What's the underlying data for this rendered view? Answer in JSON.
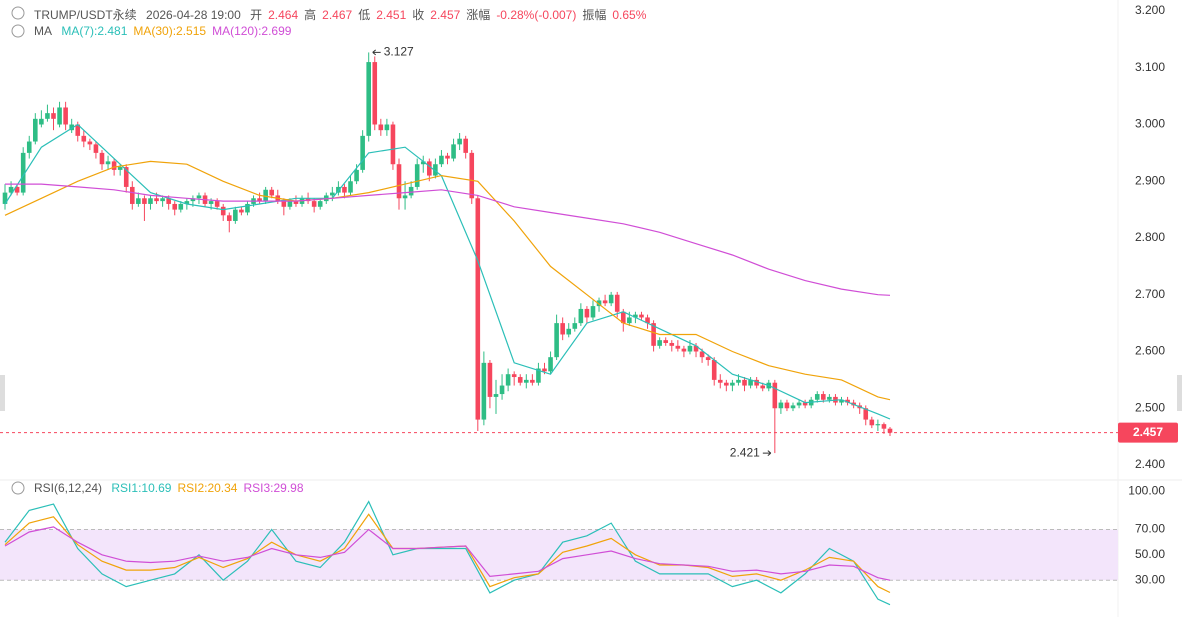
{
  "chart_data": [
    {
      "type": "candlestick",
      "title": "TRUMP/USDT永续",
      "time": "2026-04-28 19:00",
      "header": [
        {
          "label": "开",
          "value": 2.464
        },
        {
          "label": "高",
          "value": 2.467
        },
        {
          "label": "低",
          "value": 2.451
        },
        {
          "label": "收",
          "value": 2.457
        },
        {
          "label": "涨幅",
          "value": "-0.28%(-0.007)"
        },
        {
          "label": "振幅",
          "value": "0.65%"
        }
      ],
      "indicator": "MA",
      "up_color": "#2ebd85",
      "down_color": "#f6465d",
      "ylim": [
        2.4,
        3.2
      ],
      "yticks": [
        {
          "value": 3.2,
          "label": "3.200"
        },
        {
          "value": 3.1,
          "label": "3.100"
        },
        {
          "value": 3.0,
          "label": "3.000"
        },
        {
          "value": 2.9,
          "label": "2.900"
        },
        {
          "value": 2.8,
          "label": "2.800"
        },
        {
          "value": 2.7,
          "label": "2.700"
        },
        {
          "value": 2.6,
          "label": "2.600"
        },
        {
          "value": 2.5,
          "label": "2.500"
        },
        {
          "value": 2.4,
          "label": "2.400"
        }
      ],
      "last_price": 2.457,
      "high_label": 3.127,
      "low_label": 2.421,
      "candles": [
        [
          2.86,
          2.895,
          2.85,
          2.88
        ],
        [
          2.88,
          2.9,
          2.875,
          2.89
        ],
        [
          2.89,
          2.895,
          2.875,
          2.88
        ],
        [
          2.88,
          2.96,
          2.875,
          2.95
        ],
        [
          2.95,
          2.98,
          2.94,
          2.97
        ],
        [
          2.97,
          3.02,
          2.965,
          3.01
        ],
        [
          3.0,
          3.025,
          2.995,
          3.01
        ],
        [
          3.01,
          3.035,
          3.005,
          3.02
        ],
        [
          3.02,
          3.03,
          2.99,
          3.01
        ],
        [
          3.0,
          3.04,
          2.995,
          3.03
        ],
        [
          3.03,
          3.04,
          2.99,
          3.0
        ],
        [
          2.99,
          3.01,
          2.985,
          3.0
        ],
        [
          3.0,
          3.005,
          2.97,
          2.98
        ],
        [
          2.98,
          2.99,
          2.96,
          2.97
        ],
        [
          2.97,
          2.975,
          2.955,
          2.965
        ],
        [
          2.965,
          2.97,
          2.94,
          2.95
        ],
        [
          2.95,
          2.955,
          2.92,
          2.93
        ],
        [
          2.93,
          2.945,
          2.92,
          2.935
        ],
        [
          2.935,
          2.94,
          2.91,
          2.92
        ],
        [
          2.92,
          2.93,
          2.91,
          2.925
        ],
        [
          2.925,
          2.93,
          2.88,
          2.89
        ],
        [
          2.89,
          2.9,
          2.85,
          2.86
        ],
        [
          2.86,
          2.88,
          2.855,
          2.87
        ],
        [
          2.87,
          2.875,
          2.83,
          2.86
        ],
        [
          2.86,
          2.875,
          2.85,
          2.87
        ],
        [
          2.87,
          2.88,
          2.86,
          2.865
        ],
        [
          2.865,
          2.875,
          2.855,
          2.87
        ],
        [
          2.87,
          2.875,
          2.85,
          2.86
        ],
        [
          2.86,
          2.865,
          2.84,
          2.85
        ],
        [
          2.85,
          2.865,
          2.845,
          2.86
        ],
        [
          2.86,
          2.87,
          2.85,
          2.865
        ],
        [
          2.865,
          2.875,
          2.855,
          2.87
        ],
        [
          2.87,
          2.88,
          2.86,
          2.875
        ],
        [
          2.875,
          2.88,
          2.855,
          2.86
        ],
        [
          2.86,
          2.87,
          2.85,
          2.865
        ],
        [
          2.865,
          2.87,
          2.85,
          2.855
        ],
        [
          2.855,
          2.86,
          2.83,
          2.84
        ],
        [
          2.84,
          2.845,
          2.81,
          2.83
        ],
        [
          2.83,
          2.855,
          2.825,
          2.85
        ],
        [
          2.85,
          2.855,
          2.84,
          2.845
        ],
        [
          2.845,
          2.865,
          2.84,
          2.86
        ],
        [
          2.86,
          2.875,
          2.855,
          2.87
        ],
        [
          2.87,
          2.88,
          2.86,
          2.865
        ],
        [
          2.865,
          2.89,
          2.86,
          2.885
        ],
        [
          2.885,
          2.89,
          2.87,
          2.875
        ],
        [
          2.875,
          2.885,
          2.86,
          2.865
        ],
        [
          2.865,
          2.87,
          2.84,
          2.855
        ],
        [
          2.855,
          2.87,
          2.85,
          2.865
        ],
        [
          2.865,
          2.875,
          2.855,
          2.86
        ],
        [
          2.86,
          2.875,
          2.855,
          2.87
        ],
        [
          2.87,
          2.88,
          2.86,
          2.865
        ],
        [
          2.865,
          2.87,
          2.845,
          2.855
        ],
        [
          2.855,
          2.87,
          2.85,
          2.865
        ],
        [
          2.865,
          2.88,
          2.86,
          2.875
        ],
        [
          2.875,
          2.89,
          2.865,
          2.88
        ],
        [
          2.88,
          2.9,
          2.875,
          2.89
        ],
        [
          2.89,
          2.895,
          2.87,
          2.88
        ],
        [
          2.88,
          2.91,
          2.875,
          2.9
        ],
        [
          2.9,
          2.93,
          2.895,
          2.92
        ],
        [
          2.92,
          2.99,
          2.915,
          2.98
        ],
        [
          2.98,
          3.127,
          2.97,
          3.11
        ],
        [
          3.11,
          3.12,
          2.99,
          3.0
        ],
        [
          3.0,
          3.01,
          2.98,
          2.99
        ],
        [
          2.99,
          3.01,
          2.98,
          3.0
        ],
        [
          3.0,
          3.005,
          2.92,
          2.93
        ],
        [
          2.93,
          2.94,
          2.85,
          2.87
        ],
        [
          2.87,
          2.9,
          2.85,
          2.875
        ],
        [
          2.875,
          2.9,
          2.87,
          2.89
        ],
        [
          2.89,
          2.94,
          2.885,
          2.93
        ],
        [
          2.93,
          2.945,
          2.915,
          2.935
        ],
        [
          2.935,
          2.94,
          2.9,
          2.91
        ],
        [
          2.91,
          2.94,
          2.905,
          2.93
        ],
        [
          2.93,
          2.955,
          2.925,
          2.945
        ],
        [
          2.945,
          2.95,
          2.93,
          2.94
        ],
        [
          2.94,
          2.975,
          2.935,
          2.965
        ],
        [
          2.965,
          2.985,
          2.955,
          2.975
        ],
        [
          2.975,
          2.98,
          2.94,
          2.95
        ],
        [
          2.95,
          2.955,
          2.86,
          2.87
        ],
        [
          2.87,
          2.875,
          2.46,
          2.48
        ],
        [
          2.48,
          2.6,
          2.47,
          2.58
        ],
        [
          2.58,
          2.585,
          2.5,
          2.52
        ],
        [
          2.52,
          2.55,
          2.49,
          2.525
        ],
        [
          2.525,
          2.56,
          2.515,
          2.54
        ],
        [
          2.54,
          2.57,
          2.53,
          2.56
        ],
        [
          2.56,
          2.565,
          2.54,
          2.555
        ],
        [
          2.555,
          2.56,
          2.54,
          2.545
        ],
        [
          2.545,
          2.56,
          2.535,
          2.55
        ],
        [
          2.55,
          2.56,
          2.54,
          2.545
        ],
        [
          2.545,
          2.58,
          2.54,
          2.57
        ],
        [
          2.57,
          2.58,
          2.56,
          2.565
        ],
        [
          2.565,
          2.6,
          2.56,
          2.59
        ],
        [
          2.59,
          2.665,
          2.585,
          2.65
        ],
        [
          2.65,
          2.66,
          2.62,
          2.63
        ],
        [
          2.63,
          2.65,
          2.625,
          2.64
        ],
        [
          2.64,
          2.66,
          2.635,
          2.65
        ],
        [
          2.65,
          2.685,
          2.645,
          2.675
        ],
        [
          2.675,
          2.68,
          2.65,
          2.66
        ],
        [
          2.66,
          2.69,
          2.655,
          2.68
        ],
        [
          2.68,
          2.695,
          2.67,
          2.69
        ],
        [
          2.69,
          2.7,
          2.68,
          2.685
        ],
        [
          2.685,
          2.705,
          2.68,
          2.7
        ],
        [
          2.7,
          2.705,
          2.66,
          2.67
        ],
        [
          2.67,
          2.675,
          2.635,
          2.65
        ],
        [
          2.65,
          2.67,
          2.645,
          2.66
        ],
        [
          2.66,
          2.67,
          2.65,
          2.665
        ],
        [
          2.665,
          2.67,
          2.655,
          2.66
        ],
        [
          2.66,
          2.665,
          2.64,
          2.65
        ],
        [
          2.65,
          2.655,
          2.6,
          2.61
        ],
        [
          2.61,
          2.625,
          2.605,
          2.62
        ],
        [
          2.62,
          2.625,
          2.61,
          2.615
        ],
        [
          2.615,
          2.62,
          2.6,
          2.61
        ],
        [
          2.61,
          2.62,
          2.6,
          2.605
        ],
        [
          2.605,
          2.61,
          2.59,
          2.6
        ],
        [
          2.6,
          2.62,
          2.595,
          2.61
        ],
        [
          2.61,
          2.615,
          2.59,
          2.6
        ],
        [
          2.6,
          2.605,
          2.58,
          2.59
        ],
        [
          2.59,
          2.595,
          2.575,
          2.585
        ],
        [
          2.585,
          2.59,
          2.54,
          2.55
        ],
        [
          2.55,
          2.56,
          2.535,
          2.545
        ],
        [
          2.545,
          2.55,
          2.53,
          2.54
        ],
        [
          2.54,
          2.55,
          2.53,
          2.545
        ],
        [
          2.545,
          2.56,
          2.54,
          2.55
        ],
        [
          2.55,
          2.555,
          2.53,
          2.54
        ],
        [
          2.54,
          2.555,
          2.535,
          2.55
        ],
        [
          2.55,
          2.555,
          2.535,
          2.54
        ],
        [
          2.54,
          2.545,
          2.53,
          2.535
        ],
        [
          2.535,
          2.55,
          2.53,
          2.545
        ],
        [
          2.545,
          2.55,
          2.421,
          2.5
        ],
        [
          2.5,
          2.515,
          2.49,
          2.51
        ],
        [
          2.51,
          2.515,
          2.495,
          2.5
        ],
        [
          2.5,
          2.51,
          2.495,
          2.505
        ],
        [
          2.505,
          2.515,
          2.5,
          2.51
        ],
        [
          2.51,
          2.515,
          2.5,
          2.505
        ],
        [
          2.505,
          2.52,
          2.5,
          2.515
        ],
        [
          2.515,
          2.53,
          2.51,
          2.525
        ],
        [
          2.525,
          2.53,
          2.51,
          2.515
        ],
        [
          2.515,
          2.525,
          2.51,
          2.52
        ],
        [
          2.52,
          2.525,
          2.505,
          2.51
        ],
        [
          2.51,
          2.52,
          2.505,
          2.515
        ],
        [
          2.515,
          2.52,
          2.505,
          2.51
        ],
        [
          2.51,
          2.515,
          2.5,
          2.505
        ],
        [
          2.505,
          2.51,
          2.49,
          2.5
        ],
        [
          2.5,
          2.505,
          2.47,
          2.48
        ],
        [
          2.48,
          2.485,
          2.465,
          2.47
        ],
        [
          2.47,
          2.48,
          2.46,
          2.472
        ],
        [
          2.472,
          2.475,
          2.455,
          2.464
        ],
        [
          2.464,
          2.467,
          2.451,
          2.457
        ]
      ],
      "line_x": [
        0,
        6,
        12,
        18,
        24,
        30,
        36,
        42,
        48,
        54,
        60,
        66,
        72,
        78,
        84,
        90,
        96,
        102,
        108,
        114,
        120,
        126,
        132,
        138,
        144,
        146
      ],
      "series": [
        {
          "name": "MA(7):2.481",
          "color": "#2bbfb8",
          "values": [
            2.86,
            2.96,
            3.0,
            2.94,
            2.88,
            2.86,
            2.85,
            2.86,
            2.87,
            2.87,
            2.95,
            2.96,
            2.91,
            2.76,
            2.58,
            2.56,
            2.65,
            2.67,
            2.64,
            2.61,
            2.56,
            2.54,
            2.51,
            2.515,
            2.49,
            2.481
          ]
        },
        {
          "name": "MA(30):2.515",
          "color": "#f0a30a",
          "values": [
            2.84,
            2.87,
            2.9,
            2.925,
            2.935,
            2.93,
            2.9,
            2.875,
            2.865,
            2.87,
            2.88,
            2.895,
            2.91,
            2.9,
            2.83,
            2.75,
            2.7,
            2.65,
            2.63,
            2.63,
            2.6,
            2.575,
            2.56,
            2.55,
            2.52,
            2.515
          ]
        },
        {
          "name": "MA(120):2.699",
          "color": "#d04ed6",
          "values": [
            2.895,
            2.895,
            2.89,
            2.885,
            2.875,
            2.87,
            2.865,
            2.865,
            2.865,
            2.87,
            2.875,
            2.88,
            2.885,
            2.875,
            2.855,
            2.845,
            2.835,
            2.825,
            2.81,
            2.79,
            2.77,
            2.745,
            2.725,
            2.71,
            2.7,
            2.699
          ]
        }
      ]
    },
    {
      "type": "line",
      "title": "RSI(6,12,24)",
      "ylim": [
        1,
        109
      ],
      "yticks": [
        {
          "value": 100,
          "label": "100.00"
        },
        {
          "value": 70,
          "label": "70.00"
        },
        {
          "value": 50,
          "label": "50.00"
        },
        {
          "value": 30,
          "label": "30.00"
        }
      ],
      "band": [
        30,
        70
      ],
      "band_color": "#f3e5fb",
      "x": [
        0,
        4,
        8,
        12,
        16,
        20,
        24,
        28,
        32,
        36,
        40,
        44,
        48,
        52,
        56,
        60,
        64,
        68,
        72,
        76,
        80,
        84,
        88,
        92,
        96,
        100,
        104,
        108,
        112,
        116,
        120,
        124,
        128,
        132,
        136,
        140,
        144,
        146
      ],
      "series": [
        {
          "name": "RSI1:10.69",
          "color": "#2bbfb8",
          "values": [
            60,
            85,
            90,
            55,
            35,
            25,
            30,
            35,
            50,
            30,
            45,
            70,
            45,
            40,
            60,
            92,
            50,
            55,
            55,
            55,
            20,
            30,
            35,
            60,
            65,
            75,
            45,
            35,
            35,
            35,
            25,
            30,
            20,
            35,
            55,
            45,
            15,
            10.69
          ]
        },
        {
          "name": "RSI2:20.34",
          "color": "#f0a30a",
          "values": [
            58,
            75,
            80,
            58,
            45,
            38,
            38,
            40,
            48,
            40,
            47,
            60,
            50,
            45,
            55,
            82,
            55,
            55,
            56,
            57,
            25,
            32,
            35,
            52,
            57,
            63,
            50,
            42,
            42,
            40,
            33,
            35,
            30,
            38,
            48,
            45,
            25,
            20.34
          ]
        },
        {
          "name": "RSI3:29.98",
          "color": "#d04ed6",
          "values": [
            57,
            68,
            72,
            60,
            50,
            45,
            44,
            45,
            49,
            45,
            48,
            55,
            50,
            48,
            52,
            70,
            55,
            55,
            56,
            57,
            33,
            35,
            37,
            47,
            50,
            53,
            47,
            43,
            42,
            41,
            37,
            38,
            35,
            37,
            42,
            41,
            32,
            29.98
          ]
        }
      ]
    }
  ]
}
